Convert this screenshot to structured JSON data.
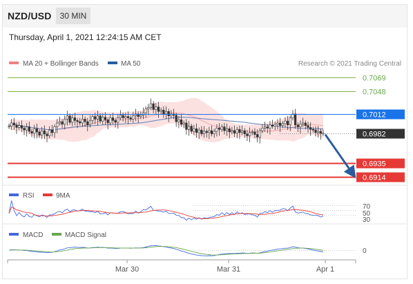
{
  "header": {
    "symbol": "NZD/USD",
    "timeframe": "30 MIN",
    "datetime": "Thursday, April 1, 2021 12:24:15 AM CET"
  },
  "chart_data": [
    {
      "type": "candlestick",
      "panel": "price",
      "legend": [
        {
          "name": "MA 20 + Bollinger Bands",
          "color": "#f08080"
        },
        {
          "name": "MA 50",
          "color": "#2b5c9e"
        }
      ],
      "watermark": "Research © 2021 Trading Central",
      "levels": [
        {
          "value": 0.7069,
          "label": "0.7069",
          "color": "#7cb342",
          "kind": "resistance"
        },
        {
          "value": 0.7048,
          "label": "0.7048",
          "color": "#7cb342",
          "kind": "resistance"
        },
        {
          "value": 0.7012,
          "label": "0.7012",
          "color": "#1a73e8",
          "kind": "pivot"
        },
        {
          "value": 0.6982,
          "label": "0.6982",
          "color": "#333333",
          "kind": "last-price"
        },
        {
          "value": 0.6935,
          "label": "0.6935",
          "color": "#e53935",
          "kind": "support"
        },
        {
          "value": 0.6914,
          "label": "0.6914",
          "color": "#e53935",
          "kind": "support"
        }
      ],
      "close": [
        0.6993,
        0.6998,
        0.6995,
        0.6991,
        0.6994,
        0.699,
        0.6987,
        0.6992,
        0.6985,
        0.6982,
        0.6989,
        0.6984,
        0.6979,
        0.6986,
        0.6981,
        0.6978,
        0.6987,
        0.6983,
        0.6992,
        0.6998,
        0.7,
        0.6996,
        0.7004,
        0.7009,
        0.6999,
        0.7006,
        0.7002,
        0.7,
        0.6998,
        0.7004,
        0.7,
        0.6995,
        0.7002,
        0.7008,
        0.7004,
        0.7009,
        0.7001,
        0.7007,
        0.7003,
        0.6998,
        0.7006,
        0.7002,
        0.6999,
        0.7006,
        0.701,
        0.7006,
        0.7008,
        0.7006,
        0.7004,
        0.7009,
        0.7012,
        0.7008,
        0.701,
        0.7014,
        0.702,
        0.7022,
        0.7028,
        0.7019,
        0.7023,
        0.7016,
        0.7018,
        0.7012,
        0.7016,
        0.7009,
        0.7012,
        0.701,
        0.7,
        0.7003,
        0.6996,
        0.6998,
        0.6988,
        0.6993,
        0.6985,
        0.6989,
        0.6983,
        0.6987,
        0.6981,
        0.6985,
        0.6983,
        0.6986,
        0.6981,
        0.6985,
        0.699,
        0.6988,
        0.6992,
        0.6986,
        0.6989,
        0.6984,
        0.6986,
        0.6982,
        0.6988,
        0.6983,
        0.6986,
        0.6981,
        0.6978,
        0.6983,
        0.6984,
        0.698,
        0.6976,
        0.6986,
        0.699,
        0.6992,
        0.699,
        0.6995,
        0.6993,
        0.6996,
        0.6998,
        0.6994,
        0.6997,
        0.7001,
        0.6995,
        0.7006,
        0.7012,
        0.6995,
        0.6992,
        0.6996,
        0.6998,
        0.6994,
        0.6991,
        0.6988,
        0.6987,
        0.6983,
        0.6985,
        0.6982,
        0.6982
      ],
      "x_ticks": [
        "Mar 30",
        "Mar 31",
        "Apr 1"
      ],
      "projection": {
        "from": 0.698,
        "to": 0.6917
      }
    },
    {
      "type": "line",
      "panel": "RSI",
      "series": [
        {
          "name": "RSI",
          "color": "#4169e1"
        },
        {
          "name": "9MA",
          "color": "#e53935"
        }
      ],
      "y_ticks": [
        "70",
        "50",
        "30"
      ]
    },
    {
      "type": "line",
      "panel": "MACD",
      "series": [
        {
          "name": "MACD",
          "color": "#4169e1"
        },
        {
          "name": "MACD Signal",
          "color": "#6aa84f"
        }
      ],
      "y_ticks": [
        "0"
      ]
    }
  ]
}
